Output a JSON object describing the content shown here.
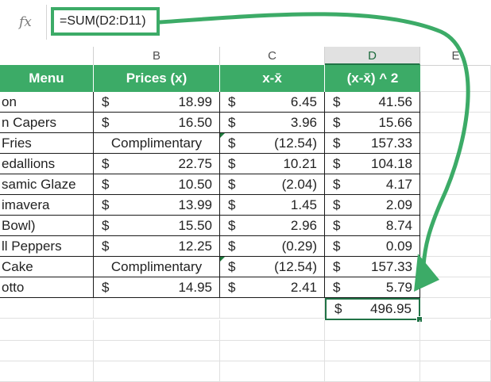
{
  "formula_bar": {
    "fx_label": "fx",
    "formula": "=SUM(D2:D11)"
  },
  "columns": [
    "B",
    "C",
    "D",
    "E"
  ],
  "headers": {
    "menu": "Menu",
    "prices": "Prices (x)",
    "dev": "x-x̄",
    "sq": "(x-x̄) ^ 2"
  },
  "currency": "$",
  "rows": [
    {
      "menu": "on",
      "price": "18.99",
      "dev": "6.45",
      "sq": "41.56"
    },
    {
      "menu": "n Capers",
      "price": "16.50",
      "dev": "3.96",
      "sq": "15.66"
    },
    {
      "menu": "Fries",
      "price": "Complimentary",
      "dev": "(12.54)",
      "sq": "157.33"
    },
    {
      "menu": "edallions",
      "price": "22.75",
      "dev": "10.21",
      "sq": "104.18"
    },
    {
      "menu": "samic Glaze",
      "price": "10.50",
      "dev": "(2.04)",
      "sq": "4.17"
    },
    {
      "menu": "imavera",
      "price": "13.99",
      "dev": "1.45",
      "sq": "2.09"
    },
    {
      "menu": "Bowl)",
      "price": "15.50",
      "dev": "2.96",
      "sq": "8.74"
    },
    {
      "menu": "ll Peppers",
      "price": "12.25",
      "dev": "(0.29)",
      "sq": "0.09"
    },
    {
      "menu": "Cake",
      "price": "Complimentary",
      "dev": "(12.54)",
      "sq": "157.33"
    },
    {
      "menu": "otto",
      "price": "14.95",
      "dev": "2.41",
      "sq": "5.79"
    }
  ],
  "total": {
    "sq": "496.95"
  },
  "colors": {
    "accent": "#3cab67",
    "excel_green": "#217346"
  }
}
